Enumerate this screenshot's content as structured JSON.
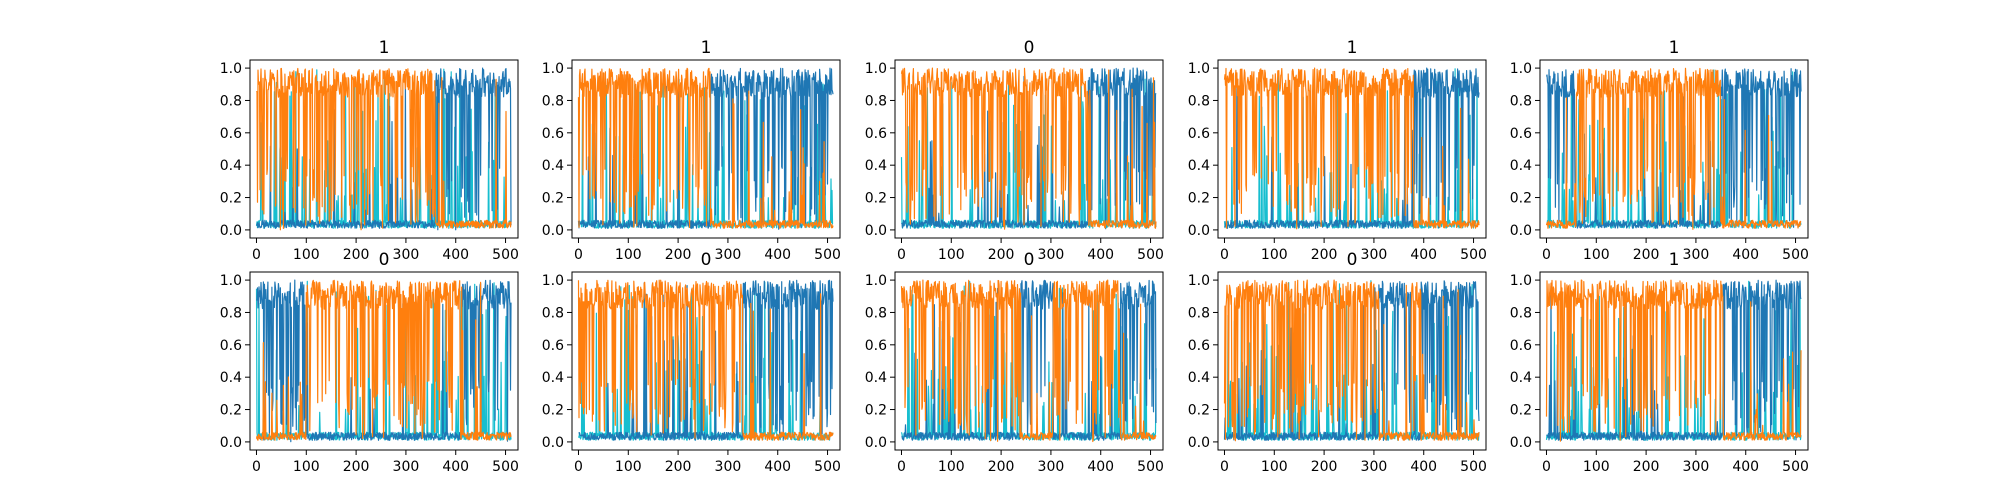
{
  "chart_data": [
    {
      "type": "line",
      "title": "1",
      "xlim": [
        -13,
        525
      ],
      "ylim": [
        -0.05,
        1.05
      ],
      "xticks": [
        0,
        100,
        200,
        300,
        400,
        500
      ],
      "yticks": [
        0.0,
        0.2,
        0.4,
        0.6,
        0.8,
        1.0
      ],
      "series": [
        {
          "color": "#ff7f0e",
          "regime": [
            [
              0,
              360
            ]
          ]
        },
        {
          "color": "#1f77b4",
          "regime": [
            [
              360,
              512
            ]
          ]
        },
        {
          "color": "#17becf",
          "regime": []
        }
      ]
    },
    {
      "type": "line",
      "title": "1",
      "xlim": [
        -13,
        525
      ],
      "ylim": [
        -0.05,
        1.05
      ],
      "xticks": [
        0,
        100,
        200,
        300,
        400,
        500
      ],
      "yticks": [
        0.0,
        0.2,
        0.4,
        0.6,
        0.8,
        1.0
      ],
      "series": [
        {
          "color": "#ff7f0e",
          "regime": [
            [
              0,
              265
            ]
          ]
        },
        {
          "color": "#1f77b4",
          "regime": [
            [
              265,
              512
            ]
          ]
        },
        {
          "color": "#17becf",
          "regime": []
        }
      ]
    },
    {
      "type": "line",
      "title": "0",
      "xlim": [
        -13,
        525
      ],
      "ylim": [
        -0.05,
        1.05
      ],
      "xticks": [
        0,
        100,
        200,
        300,
        400,
        500
      ],
      "yticks": [
        0.0,
        0.2,
        0.4,
        0.6,
        0.8,
        1.0
      ],
      "series": [
        {
          "color": "#ff7f0e",
          "regime": [
            [
              0,
              375
            ]
          ]
        },
        {
          "color": "#1f77b4",
          "regime": [
            [
              375,
              512
            ]
          ]
        },
        {
          "color": "#17becf",
          "regime": []
        }
      ]
    },
    {
      "type": "line",
      "title": "1",
      "xlim": [
        -13,
        525
      ],
      "ylim": [
        -0.05,
        1.05
      ],
      "xticks": [
        0,
        100,
        200,
        300,
        400,
        500
      ],
      "yticks": [
        0.0,
        0.2,
        0.4,
        0.6,
        0.8,
        1.0
      ],
      "series": [
        {
          "color": "#ff7f0e",
          "regime": [
            [
              0,
              380
            ]
          ]
        },
        {
          "color": "#1f77b4",
          "regime": [
            [
              380,
              512
            ]
          ]
        },
        {
          "color": "#17becf",
          "regime": []
        }
      ]
    },
    {
      "type": "line",
      "title": "1",
      "xlim": [
        -13,
        525
      ],
      "ylim": [
        -0.05,
        1.05
      ],
      "xticks": [
        0,
        100,
        200,
        300,
        400,
        500
      ],
      "yticks": [
        0.0,
        0.2,
        0.4,
        0.6,
        0.8,
        1.0
      ],
      "series": [
        {
          "color": "#ff7f0e",
          "regime": [
            [
              60,
              350
            ]
          ]
        },
        {
          "color": "#1f77b4",
          "regime": [
            [
              0,
              60
            ],
            [
              350,
              512
            ]
          ]
        },
        {
          "color": "#17becf",
          "regime": []
        }
      ]
    },
    {
      "type": "line",
      "title": "0",
      "xlim": [
        -13,
        525
      ],
      "ylim": [
        -0.05,
        1.05
      ],
      "xticks": [
        0,
        100,
        200,
        300,
        400,
        500
      ],
      "yticks": [
        0.0,
        0.2,
        0.4,
        0.6,
        0.8,
        1.0
      ],
      "series": [
        {
          "color": "#ff7f0e",
          "regime": [
            [
              100,
              410
            ]
          ]
        },
        {
          "color": "#1f77b4",
          "regime": [
            [
              0,
              100
            ],
            [
              410,
              512
            ]
          ]
        },
        {
          "color": "#17becf",
          "regime": []
        }
      ]
    },
    {
      "type": "line",
      "title": "0",
      "xlim": [
        -13,
        525
      ],
      "ylim": [
        -0.05,
        1.05
      ],
      "xticks": [
        0,
        100,
        200,
        300,
        400,
        500
      ],
      "yticks": [
        0.0,
        0.2,
        0.4,
        0.6,
        0.8,
        1.0
      ],
      "series": [
        {
          "color": "#ff7f0e",
          "regime": [
            [
              0,
              330
            ]
          ]
        },
        {
          "color": "#1f77b4",
          "regime": [
            [
              330,
              512
            ]
          ]
        },
        {
          "color": "#17becf",
          "regime": []
        }
      ]
    },
    {
      "type": "line",
      "title": "0",
      "xlim": [
        -13,
        525
      ],
      "ylim": [
        -0.05,
        1.05
      ],
      "xticks": [
        0,
        100,
        200,
        300,
        400,
        500
      ],
      "yticks": [
        0.0,
        0.2,
        0.4,
        0.6,
        0.8,
        1.0
      ],
      "series": [
        {
          "color": "#ff7f0e",
          "regime": [
            [
              0,
              240
            ],
            [
              305,
              440
            ]
          ]
        },
        {
          "color": "#1f77b4",
          "regime": [
            [
              240,
              305
            ],
            [
              440,
              512
            ]
          ]
        },
        {
          "color": "#17becf",
          "regime": []
        }
      ]
    },
    {
      "type": "line",
      "title": "0",
      "xlim": [
        -13,
        525
      ],
      "ylim": [
        -0.05,
        1.05
      ],
      "xticks": [
        0,
        100,
        200,
        300,
        400,
        500
      ],
      "yticks": [
        0.0,
        0.2,
        0.4,
        0.6,
        0.8,
        1.0
      ],
      "series": [
        {
          "color": "#ff7f0e",
          "regime": [
            [
              0,
              310
            ],
            [
              375,
              395
            ]
          ]
        },
        {
          "color": "#1f77b4",
          "regime": [
            [
              310,
              375
            ],
            [
              395,
              512
            ]
          ]
        },
        {
          "color": "#17becf",
          "regime": []
        }
      ]
    },
    {
      "type": "line",
      "title": "1",
      "xlim": [
        -13,
        525
      ],
      "ylim": [
        -0.05,
        1.05
      ],
      "xticks": [
        0,
        100,
        200,
        300,
        400,
        500
      ],
      "yticks": [
        0.0,
        0.2,
        0.4,
        0.6,
        0.8,
        1.0
      ],
      "series": [
        {
          "color": "#ff7f0e",
          "regime": [
            [
              0,
              355
            ]
          ]
        },
        {
          "color": "#1f77b4",
          "regime": [
            [
              355,
              512
            ]
          ]
        },
        {
          "color": "#17becf",
          "regime": []
        }
      ]
    }
  ]
}
